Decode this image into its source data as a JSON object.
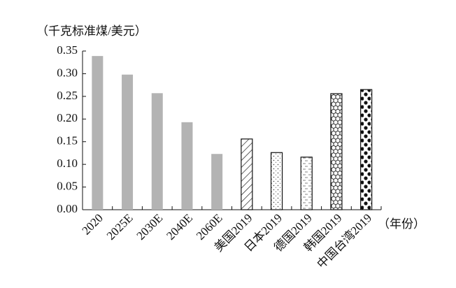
{
  "chart_data": {
    "type": "bar",
    "y_label": "（千克标准煤/美元）",
    "x_label": "（年份）",
    "categories": [
      "2020",
      "2025E",
      "2030E",
      "2040E",
      "2060E",
      "美国2019",
      "日本2019",
      "德国2019",
      "韩国2019",
      "中国台湾2019"
    ],
    "values": [
      0.339,
      0.298,
      0.257,
      0.193,
      0.123,
      0.156,
      0.126,
      0.116,
      0.256,
      0.265
    ],
    "bar_styles": [
      "solid",
      "solid",
      "solid",
      "solid",
      "solid",
      "hatch",
      "dots",
      "dashes",
      "hexagons",
      "circles"
    ],
    "color": "#b3b3b3",
    "ylim": [
      0,
      0.35
    ],
    "yticks": [
      {
        "value": 0,
        "label": "0.00"
      },
      0.05,
      {
        "value": 0.1,
        "label": "0.10"
      },
      0.15,
      {
        "value": 0.2,
        "label": "0.20"
      },
      0.25,
      {
        "value": 0.3,
        "label": "0.30"
      },
      0.35
    ]
  }
}
